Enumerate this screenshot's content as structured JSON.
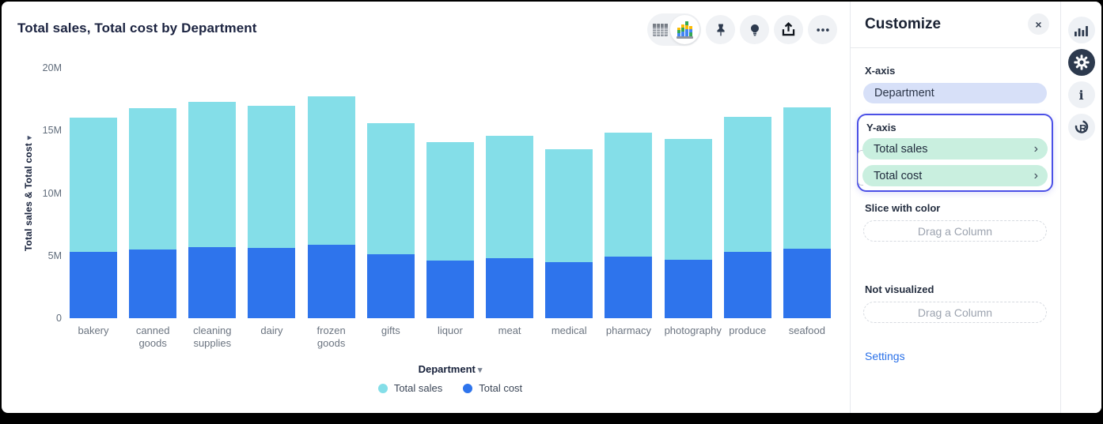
{
  "header": {
    "title": "Total sales, Total cost by Department"
  },
  "toolbar": {
    "view_toggle": {
      "options": [
        "table-view",
        "chart-view"
      ],
      "selected": "chart-view"
    },
    "icons": [
      "table-view-icon",
      "bar-chart-view-icon",
      "pin-icon",
      "lightbulb-icon",
      "share-icon",
      "ellipsis-icon"
    ]
  },
  "icons": {
    "close": "×",
    "chevron": "›",
    "caret_down": "▾",
    "ylabel_arrow": "▾"
  },
  "chart_data": {
    "type": "bar",
    "stacked": true,
    "title": "Total sales, Total cost by Department",
    "xlabel": "Department",
    "ylabel": "Total sales & Total cost",
    "categories": [
      "bakery",
      "canned goods",
      "cleaning supplies",
      "dairy",
      "frozen goods",
      "gifts",
      "liquor",
      "meat",
      "medical",
      "pharmacy",
      "photography",
      "produce",
      "seafood"
    ],
    "series": [
      {
        "name": "Total sales",
        "color": "#84DEE8",
        "values": [
          10.7,
          11.3,
          11.6,
          11.4,
          11.8,
          10.5,
          9.5,
          9.8,
          9.0,
          9.9,
          9.6,
          10.8,
          11.3
        ]
      },
      {
        "name": "Total cost",
        "color": "#2E74EC",
        "values": [
          5.3,
          5.5,
          5.7,
          5.6,
          5.9,
          5.1,
          4.6,
          4.8,
          4.5,
          4.9,
          4.7,
          5.3,
          5.55
        ]
      }
    ],
    "unit": "M",
    "ylim": [
      0,
      20
    ],
    "yticks": [
      "0",
      "5M",
      "10M",
      "15M",
      "20M"
    ],
    "grid": false,
    "legend_position": "bottom"
  },
  "panel": {
    "title": "Customize",
    "x_axis": {
      "label": "X-axis",
      "value": "Department"
    },
    "y_axis": {
      "label": "Y-axis",
      "items": [
        "Total sales",
        "Total cost"
      ]
    },
    "slice_with_color": {
      "label": "Slice with color",
      "placeholder": "Drag a Column"
    },
    "not_visualized": {
      "label": "Not visualized",
      "placeholder": "Drag a Column"
    },
    "settings_label": "Settings"
  },
  "right_strip": {
    "icons": [
      "bar-chart-icon",
      "gear-icon",
      "info-icon",
      "r-logo-icon"
    ],
    "active": "gear-icon"
  },
  "colors": {
    "sales": "#84DEE8",
    "cost": "#2E74EC",
    "accent_border": "#4B50E6",
    "x_pill_bg": "#D7E0F8",
    "y_pill_bg": "#C9EFDF",
    "link": "#2970E8"
  }
}
